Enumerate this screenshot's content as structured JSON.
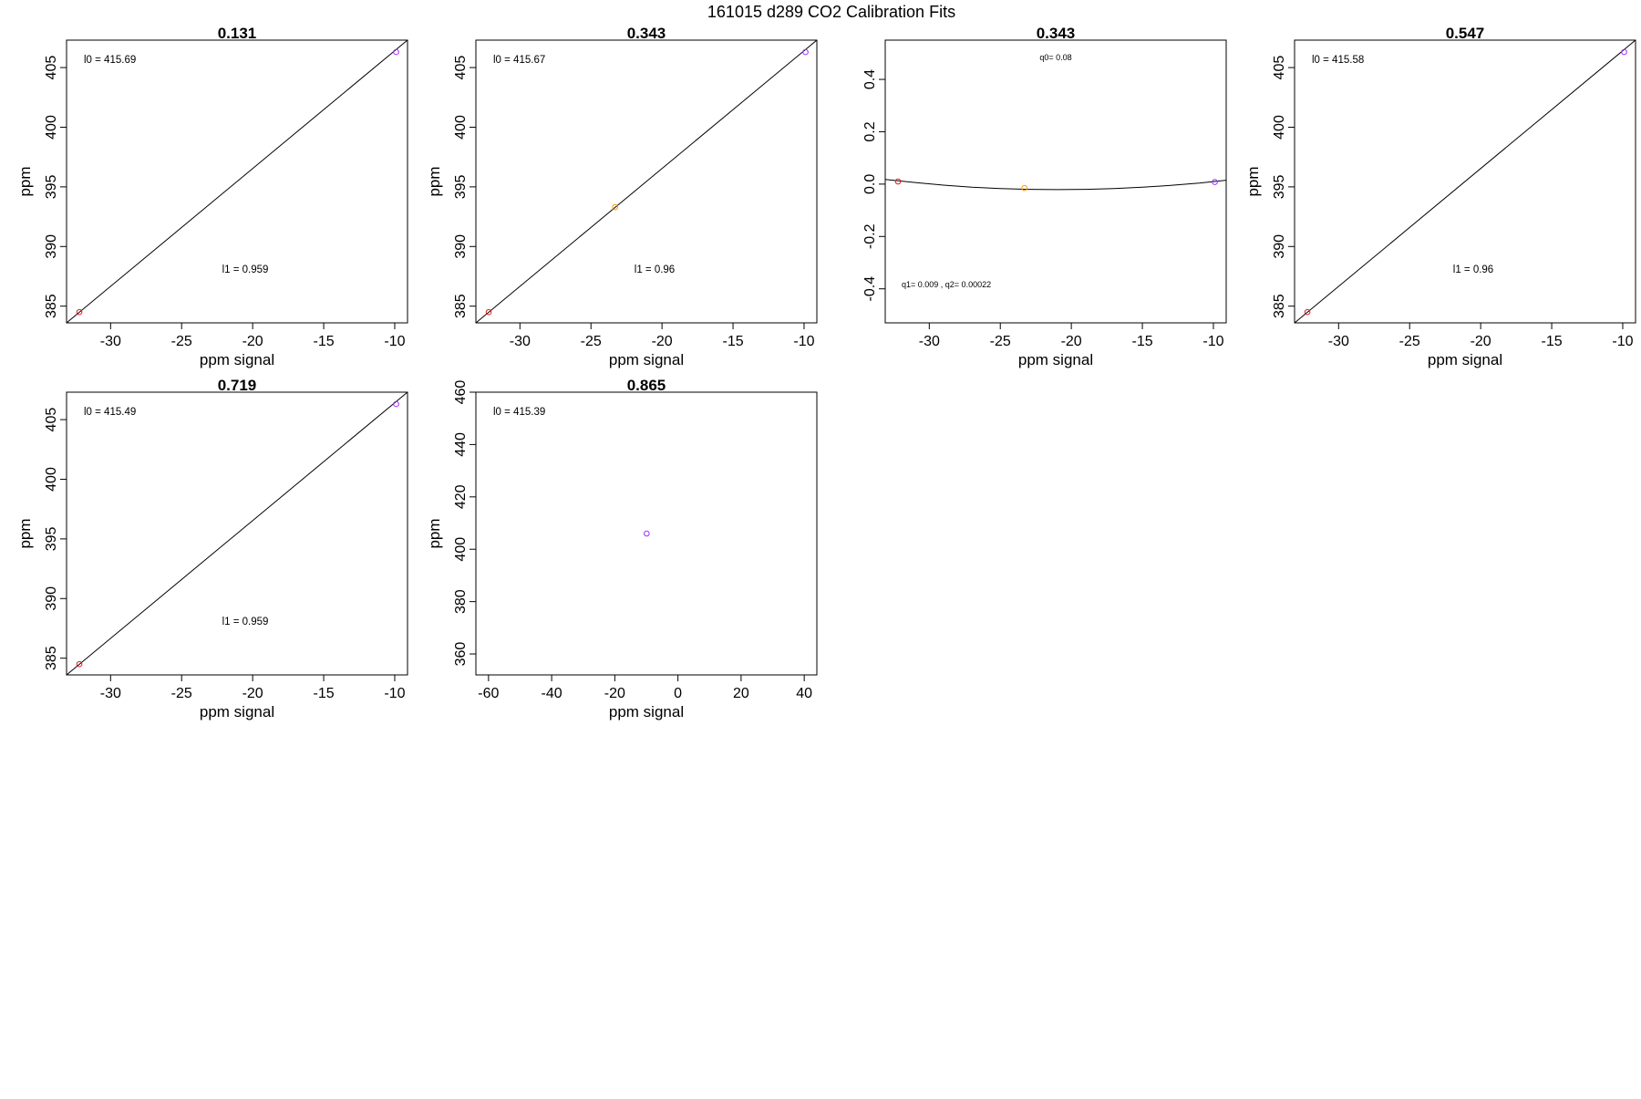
{
  "figure_title": "161015   d289   CO2 Calibration Fits",
  "chart_data": [
    {
      "type": "scatter",
      "title": "0.131",
      "xlabel": "ppm signal",
      "ylabel": "ppm",
      "xlim": [
        -33.1,
        -9.1
      ],
      "ylim": [
        383.6,
        407.3
      ],
      "xticks": [
        -30,
        -25,
        -20,
        -15,
        -10
      ],
      "yticks": [
        385,
        390,
        395,
        400,
        405
      ],
      "grid": false,
      "points": [
        {
          "x": -32.2,
          "y": 384.5,
          "color": "#e41a1c"
        },
        {
          "x": -9.9,
          "y": 406.3,
          "color": "#9933ff"
        }
      ],
      "fit": {
        "kind": "line",
        "x": [
          -33.1,
          -9.1
        ],
        "y": [
          383.6,
          407.3
        ]
      },
      "annotations": [
        {
          "text": "l0 =  415.69",
          "position": "top-left",
          "size": "normal"
        },
        {
          "text": "l1 =  0.959",
          "position": "bottom-center",
          "size": "normal"
        }
      ]
    },
    {
      "type": "scatter",
      "title": "0.343",
      "xlabel": "ppm signal",
      "ylabel": "ppm",
      "xlim": [
        -33.1,
        -9.1
      ],
      "ylim": [
        383.6,
        407.3
      ],
      "xticks": [
        -30,
        -25,
        -20,
        -15,
        -10
      ],
      "yticks": [
        385,
        390,
        395,
        400,
        405
      ],
      "grid": false,
      "points": [
        {
          "x": -32.2,
          "y": 384.5,
          "color": "#e41a1c"
        },
        {
          "x": -23.3,
          "y": 393.3,
          "color": "#ff9900"
        },
        {
          "x": -9.9,
          "y": 406.3,
          "color": "#9933ff"
        }
      ],
      "fit": {
        "kind": "line",
        "x": [
          -33.1,
          -9.1
        ],
        "y": [
          383.6,
          407.3
        ]
      },
      "annotations": [
        {
          "text": "l0 =  415.67",
          "position": "top-left",
          "size": "normal"
        },
        {
          "text": "l1 =  0.96",
          "position": "bottom-center",
          "size": "normal"
        }
      ]
    },
    {
      "type": "scatter",
      "title": "0.343",
      "xlabel": "ppm signal",
      "ylabel": "",
      "xlim": [
        -33.1,
        -9.1
      ],
      "ylim": [
        -0.53,
        0.55
      ],
      "xticks": [
        -30,
        -25,
        -20,
        -15,
        -10
      ],
      "yticks": [
        -0.4,
        -0.2,
        0.0,
        0.2,
        0.4
      ],
      "ytick_labels": [
        "-0.4",
        "-0.2",
        "0.0",
        "0.2",
        "0.4"
      ],
      "grid": false,
      "points": [
        {
          "x": -32.2,
          "y": 0.01,
          "color": "#e41a1c"
        },
        {
          "x": -23.3,
          "y": -0.015,
          "color": "#ff9900"
        },
        {
          "x": -9.9,
          "y": 0.008,
          "color": "#9933ff"
        }
      ],
      "fit": {
        "kind": "curve",
        "x": [
          -33.1,
          -31,
          -29,
          -27,
          -25,
          -23,
          -21,
          -19,
          -17,
          -15,
          -13,
          -11,
          -9.1
        ],
        "y": [
          0.018,
          0.006,
          -0.004,
          -0.012,
          -0.017,
          -0.02,
          -0.021,
          -0.02,
          -0.017,
          -0.012,
          -0.005,
          0.004,
          0.015
        ]
      },
      "annotations": [
        {
          "text": "q0= 0.08",
          "position": "top-center",
          "size": "small"
        },
        {
          "text": "q1= 0.009 , q2= 0.00022",
          "position": "bottom-left",
          "size": "small"
        }
      ]
    },
    {
      "type": "scatter",
      "title": "0.547",
      "xlabel": "ppm signal",
      "ylabel": "ppm",
      "xlim": [
        -33.1,
        -9.1
      ],
      "ylim": [
        383.6,
        407.3
      ],
      "xticks": [
        -30,
        -25,
        -20,
        -15,
        -10
      ],
      "yticks": [
        385,
        390,
        395,
        400,
        405
      ],
      "grid": false,
      "points": [
        {
          "x": -32.2,
          "y": 384.5,
          "color": "#e41a1c"
        },
        {
          "x": -9.9,
          "y": 406.3,
          "color": "#9933ff"
        }
      ],
      "fit": {
        "kind": "line",
        "x": [
          -33.1,
          -9.1
        ],
        "y": [
          383.6,
          407.3
        ]
      },
      "annotations": [
        {
          "text": "l0 =  415.58",
          "position": "top-left",
          "size": "normal"
        },
        {
          "text": "l1 =  0.96",
          "position": "bottom-center",
          "size": "normal"
        }
      ]
    },
    {
      "type": "scatter",
      "title": "0.719",
      "xlabel": "ppm signal",
      "ylabel": "ppm",
      "xlim": [
        -33.1,
        -9.1
      ],
      "ylim": [
        383.6,
        407.3
      ],
      "xticks": [
        -30,
        -25,
        -20,
        -15,
        -10
      ],
      "yticks": [
        385,
        390,
        395,
        400,
        405
      ],
      "grid": false,
      "points": [
        {
          "x": -32.2,
          "y": 384.5,
          "color": "#e41a1c"
        },
        {
          "x": -9.9,
          "y": 406.3,
          "color": "#9933ff"
        }
      ],
      "fit": {
        "kind": "line",
        "x": [
          -33.1,
          -9.1
        ],
        "y": [
          383.6,
          407.3
        ]
      },
      "annotations": [
        {
          "text": "l0 =  415.49",
          "position": "top-left",
          "size": "normal"
        },
        {
          "text": "l1 =  0.959",
          "position": "bottom-center",
          "size": "normal"
        }
      ]
    },
    {
      "type": "scatter",
      "title": "0.865",
      "xlabel": "ppm signal",
      "ylabel": "ppm",
      "xlim": [
        -64,
        44
      ],
      "ylim": [
        352,
        460
      ],
      "xticks": [
        -60,
        -40,
        -20,
        0,
        20,
        40
      ],
      "yticks": [
        360,
        380,
        400,
        420,
        440,
        460
      ],
      "grid": false,
      "points": [
        {
          "x": -9.9,
          "y": 406,
          "color": "#9933ff"
        }
      ],
      "fit": null,
      "annotations": [
        {
          "text": "l0 =  415.39",
          "position": "top-left",
          "size": "normal"
        }
      ]
    }
  ]
}
